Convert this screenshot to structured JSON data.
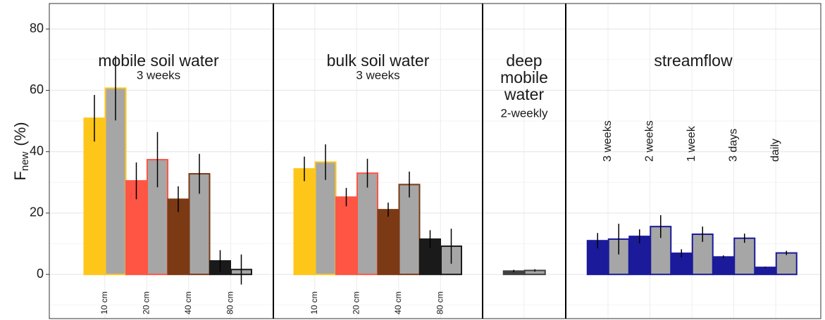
{
  "chart_data": [
    {
      "type": "bar",
      "title_lines": [
        "mobile soil water"
      ],
      "subtitle": "3 weeks",
      "ylabel_main": "F",
      "ylabel_sub": "new",
      "ylabel_unit": "(%)",
      "ylim": [
        -14.4,
        88.3
      ],
      "yticks": [
        0,
        20,
        40,
        60,
        80
      ],
      "minor_yticks": [
        -10,
        10,
        30,
        50,
        70
      ],
      "grid": true,
      "category_label_position": "bottom",
      "categories": [
        "10 cm",
        "20 cm",
        "40 cm",
        "80 cm"
      ],
      "colors": [
        "#ffc61a",
        "#ff5544",
        "#7b3a14",
        "#1a1a1a"
      ],
      "series": [
        {
          "values": [
            50.9,
            30.5,
            24.5,
            4.4
          ],
          "errors": [
            7.6,
            6.0,
            4.2,
            3.5
          ]
        },
        {
          "fill": "#a6a6a6",
          "values": [
            60.7,
            37.4,
            32.8,
            1.6
          ],
          "errors": [
            10.5,
            9.0,
            6.5,
            4.9
          ]
        }
      ]
    },
    {
      "type": "bar",
      "title_lines": [
        "bulk soil water"
      ],
      "subtitle": "3 weeks",
      "category_label_position": "bottom",
      "categories": [
        "10 cm",
        "20 cm",
        "40 cm",
        "80 cm"
      ],
      "colors": [
        "#ffc61a",
        "#ff5544",
        "#7b3a14",
        "#1a1a1a"
      ],
      "series": [
        {
          "values": [
            34.4,
            25.2,
            21.1,
            11.5
          ],
          "errors": [
            4.0,
            3.0,
            2.3,
            2.9
          ]
        },
        {
          "fill": "#a6a6a6",
          "values": [
            36.6,
            33.0,
            29.3,
            9.2
          ],
          "errors": [
            5.8,
            4.7,
            4.2,
            5.7
          ]
        }
      ]
    },
    {
      "type": "bar",
      "title_lines": [
        "deep",
        "mobile",
        "water"
      ],
      "subtitle": "2-weekly",
      "category_label_position": "bottom",
      "categories": [
        null
      ],
      "colors": [
        "#404040"
      ],
      "series": [
        {
          "values": [
            1.1
          ],
          "errors": [
            0.4
          ]
        },
        {
          "fill": "#a6a6a6",
          "values": [
            1.3
          ],
          "errors": [
            0.4
          ]
        }
      ]
    },
    {
      "type": "bar",
      "title_lines": [
        "streamflow"
      ],
      "category_label_position": "top",
      "categories": [
        "3 weeks",
        "2 weeks",
        "1 week",
        "3 days",
        "daily"
      ],
      "colors": [
        "#1a1a9a",
        "#1a1a9a",
        "#1a1a9a",
        "#1a1a9a",
        "#1a1a9a"
      ],
      "series": [
        {
          "values": [
            11.0,
            12.4,
            6.9,
            5.7,
            2.3
          ],
          "errors": [
            2.5,
            2.3,
            1.3,
            0.5,
            0.2
          ]
        },
        {
          "fill": "#a6a6a6",
          "values": [
            11.5,
            15.6,
            13.1,
            11.8,
            7.0
          ],
          "errors": [
            5.0,
            3.7,
            2.5,
            1.5,
            0.7
          ]
        }
      ]
    }
  ]
}
